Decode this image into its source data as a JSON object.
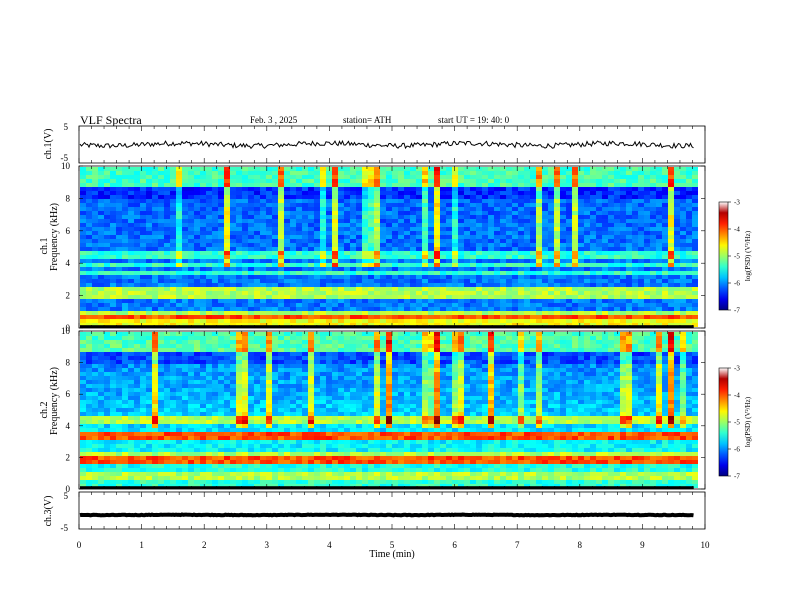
{
  "header": {
    "title": "VLF  Spectra",
    "date": "Feb. 3  , 2025",
    "station": "station= ATH",
    "start": "start  UT  =   19: 40: 0"
  },
  "chart_data": [
    {
      "type": "line",
      "panel": "ch1-waveform",
      "ylabel": "ch.1(V)",
      "yticks": [
        "5",
        "-5"
      ],
      "ylim": [
        -5,
        5
      ],
      "xlim": [
        0,
        10
      ],
      "trace_level": 0,
      "line_color": "#000000"
    },
    {
      "type": "heatmap",
      "panel": "ch1-spectrogram",
      "ylabel": "ch.1\nFrequency (kHz)",
      "ylabel_lines": [
        "ch.1",
        "Frequency  (kHz)"
      ],
      "yticks": [
        "0",
        "2",
        "4",
        "6",
        "8",
        "10"
      ],
      "ylim": [
        0,
        10
      ],
      "xlim": [
        0,
        10
      ],
      "data_end_min": 9.82,
      "colorbar": {
        "label": "log(PSD) (V²/Hz)",
        "ticks": [
          "-3",
          "-4",
          "-5",
          "-6",
          "-7"
        ],
        "range": [
          -7,
          -3
        ]
      },
      "bands_khz": [
        {
          "f": 0.2,
          "level": "high"
        },
        {
          "f": 0.5,
          "level": "high"
        },
        {
          "f": 0.8,
          "level": "red"
        },
        {
          "f": 1.0,
          "level": "mid"
        },
        {
          "f": 2.1,
          "level": "mid"
        },
        {
          "f": 2.4,
          "level": "mid"
        },
        {
          "f": 3.5,
          "level": "low"
        },
        {
          "f": 4.0,
          "level": "low"
        },
        {
          "f": 4.6,
          "level": "low"
        }
      ]
    },
    {
      "type": "heatmap",
      "panel": "ch2-spectrogram",
      "ylabel_lines": [
        "ch.2",
        "Frequency  (kHz)"
      ],
      "yticks": [
        "0",
        "2",
        "4",
        "6",
        "8",
        "10"
      ],
      "ylim": [
        0,
        10
      ],
      "xlim": [
        0,
        10
      ],
      "data_end_min": 9.82,
      "colorbar": {
        "label": "log(PSD) (V²/Hz)",
        "ticks": [
          "-3",
          "-4",
          "-5",
          "-6",
          "-7"
        ],
        "range": [
          -7,
          -3
        ]
      },
      "bands_khz": [
        {
          "f": 2.0,
          "level": "red"
        },
        {
          "f": 2.3,
          "level": "mid"
        },
        {
          "f": 3.5,
          "level": "red"
        },
        {
          "f": 4.5,
          "level": "mid"
        },
        {
          "f": 1.0,
          "level": "mid"
        }
      ]
    },
    {
      "type": "line",
      "panel": "ch3-waveform",
      "ylabel": "ch.3(V)",
      "yticks": [
        "5",
        "-5"
      ],
      "ylim": [
        -5,
        5
      ],
      "xlim": [
        0,
        10
      ],
      "trace_level": -1.2,
      "line_color": "#000000"
    }
  ],
  "xaxis": {
    "label": "Time  (min)",
    "ticks": [
      0,
      1,
      2,
      3,
      4,
      5,
      6,
      7,
      8,
      9,
      10
    ]
  }
}
